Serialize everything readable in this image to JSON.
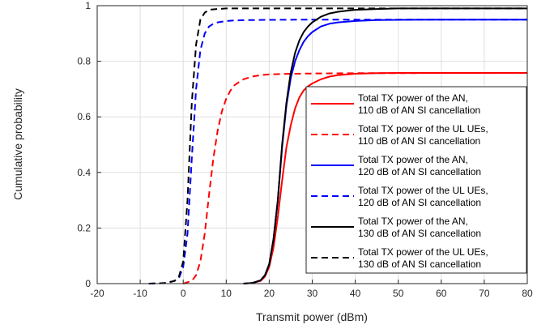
{
  "chart_data": {
    "type": "line",
    "title": "",
    "xlabel": "Transmit power (dBm)",
    "ylabel": "Cumulative probability",
    "xlim": [
      -20,
      80
    ],
    "ylim": [
      0,
      1
    ],
    "xticks": [
      -20,
      -10,
      0,
      10,
      20,
      30,
      40,
      50,
      60,
      70,
      80
    ],
    "yticks": [
      0,
      0.2,
      0.4,
      0.6,
      0.8,
      1
    ],
    "grid": true,
    "legend_position": "center-right",
    "series": [
      {
        "name": "Total TX power of the AN, 110 dB of AN SI cancellation",
        "legend_lines": [
          "Total TX power of the AN,",
          "110 dB of AN SI cancellation"
        ],
        "color": "#ff0000",
        "dash": "solid",
        "x": [
          14,
          16,
          18,
          19,
          20,
          21,
          22,
          23,
          24,
          25,
          26,
          27,
          28,
          29,
          30,
          32,
          34,
          36,
          40,
          45,
          50,
          60,
          70,
          80
        ],
        "y": [
          0,
          0.002,
          0.01,
          0.025,
          0.06,
          0.13,
          0.24,
          0.37,
          0.49,
          0.57,
          0.63,
          0.67,
          0.695,
          0.71,
          0.72,
          0.735,
          0.745,
          0.75,
          0.755,
          0.757,
          0.758,
          0.758,
          0.758,
          0.758
        ]
      },
      {
        "name": "Total TX power of the UL UEs, 110 dB of AN SI cancellation",
        "legend_lines": [
          "Total TX power of the UL UEs,",
          "110 dB of AN SI cancellation"
        ],
        "color": "#ff0000",
        "dash": "dashed",
        "x": [
          0,
          2,
          3,
          4,
          5,
          6,
          7,
          8,
          9,
          10,
          11,
          12,
          14,
          16,
          18,
          20,
          25,
          30,
          40,
          80
        ],
        "y": [
          0,
          0.01,
          0.03,
          0.08,
          0.18,
          0.32,
          0.45,
          0.55,
          0.62,
          0.665,
          0.695,
          0.715,
          0.735,
          0.745,
          0.75,
          0.753,
          0.755,
          0.756,
          0.757,
          0.758
        ]
      },
      {
        "name": "Total TX power of the AN, 120 dB of AN SI cancellation",
        "legend_lines": [
          "Total TX power of the AN,",
          "120 dB of AN SI cancellation"
        ],
        "color": "#0000ff",
        "dash": "solid",
        "x": [
          14,
          16,
          18,
          19,
          20,
          21,
          22,
          23,
          24,
          25,
          26,
          27,
          28,
          29,
          30,
          32,
          34,
          36,
          40,
          45,
          50,
          60,
          80
        ],
        "y": [
          0,
          0.002,
          0.012,
          0.03,
          0.07,
          0.16,
          0.3,
          0.49,
          0.64,
          0.74,
          0.8,
          0.84,
          0.87,
          0.89,
          0.905,
          0.925,
          0.935,
          0.94,
          0.945,
          0.948,
          0.949,
          0.95,
          0.95
        ]
      },
      {
        "name": "Total TX power of the UL UEs, 120 dB of AN SI cancellation",
        "legend_lines": [
          "Total TX power of the UL UEs,",
          "120 dB of AN SI cancellation"
        ],
        "color": "#0000ff",
        "dash": "dashed",
        "x": [
          -8,
          -4,
          -2,
          -1,
          0,
          1,
          2,
          3,
          4,
          5,
          6,
          7,
          8,
          10,
          12,
          15,
          20,
          30,
          80
        ],
        "y": [
          0,
          0.002,
          0.01,
          0.02,
          0.06,
          0.18,
          0.45,
          0.7,
          0.84,
          0.9,
          0.925,
          0.935,
          0.94,
          0.945,
          0.947,
          0.948,
          0.949,
          0.95,
          0.95
        ]
      },
      {
        "name": "Total TX power of the AN, 130 dB of AN SI cancellation",
        "legend_lines": [
          "Total TX power of the AN,",
          "130 dB of AN SI cancellation"
        ],
        "color": "#000000",
        "dash": "solid",
        "x": [
          14,
          16,
          18,
          19,
          20,
          21,
          22,
          23,
          24,
          25,
          26,
          27,
          28,
          29,
          30,
          32,
          34,
          36,
          38,
          40,
          45,
          50,
          60,
          80
        ],
        "y": [
          0,
          0.002,
          0.012,
          0.03,
          0.07,
          0.16,
          0.3,
          0.5,
          0.65,
          0.76,
          0.83,
          0.875,
          0.905,
          0.925,
          0.94,
          0.96,
          0.972,
          0.978,
          0.982,
          0.985,
          0.988,
          0.99,
          0.99,
          0.99
        ]
      },
      {
        "name": "Total TX power of the UL UEs, 130 dB of AN SI cancellation",
        "legend_lines": [
          "Total TX power of the UL UEs,",
          "130 dB of AN SI cancellation"
        ],
        "color": "#000000",
        "dash": "dashed",
        "x": [
          -8,
          -4,
          -2,
          -1,
          0,
          1,
          2,
          3,
          4,
          5,
          6,
          8,
          10,
          15,
          20,
          30,
          80
        ],
        "y": [
          0,
          0.002,
          0.01,
          0.025,
          0.08,
          0.3,
          0.65,
          0.86,
          0.95,
          0.975,
          0.985,
          0.988,
          0.99,
          0.99,
          0.99,
          0.99,
          0.99
        ]
      }
    ]
  }
}
